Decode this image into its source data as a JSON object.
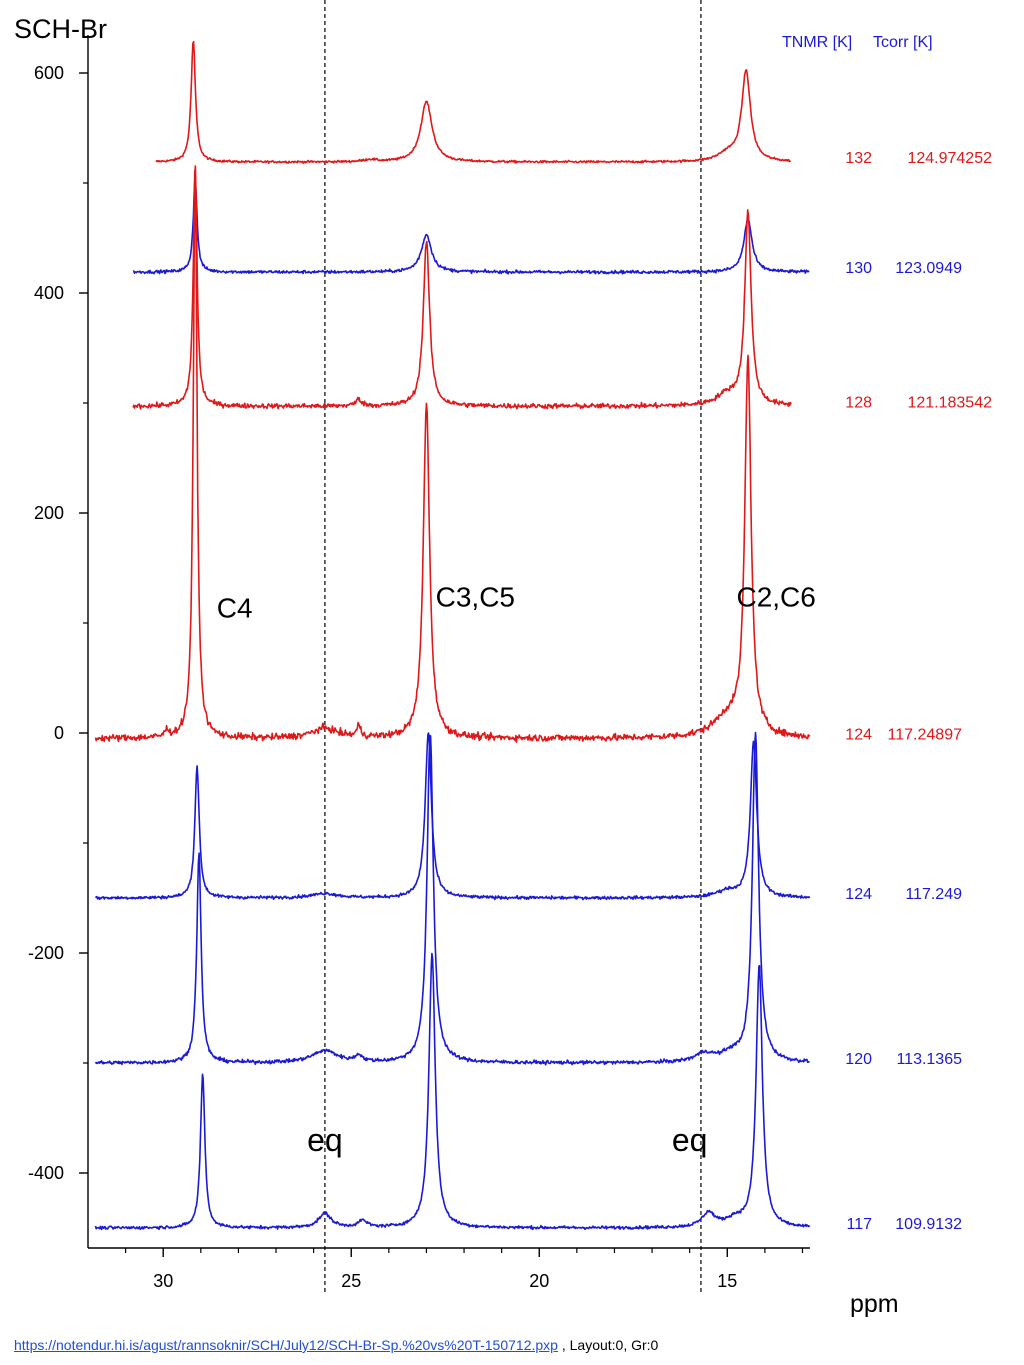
{
  "footer": {
    "link_text": "https://notendur.hi.is/agust/rannsoknir/SCH/July12/SCH-Br-Sp.%20vs%20T-150712.pxp",
    "suffix": " , Layout:0, Gr:0"
  },
  "chart_data": {
    "type": "line",
    "title": "SCH-Br",
    "xlabel": "ppm",
    "ylabel": "",
    "xlim": [
      32,
      12.8
    ],
    "ylim": [
      -470,
      640
    ],
    "x_reversed": true,
    "x_ticks": [
      30,
      25,
      20,
      15
    ],
    "x_tick_labels": [
      "30",
      "25",
      "20",
      "15"
    ],
    "y_ticks": [
      600,
      400,
      200,
      0,
      -200,
      -400
    ],
    "y_tick_labels": [
      "600",
      "400",
      "200",
      "0",
      "-200",
      "-400"
    ],
    "grid": false,
    "reference_lines": [
      25.7,
      15.7
    ],
    "legend_header": {
      "col1": "TNMR [K]",
      "col2": "Tcorr [K]",
      "color": "#1a1ad6"
    },
    "peak_labels": [
      {
        "text": "C4",
        "x": 28.1,
        "y": 105
      },
      {
        "text": "C3,C5",
        "x": 21.7,
        "y": 115
      },
      {
        "text": "C2,C6",
        "x": 13.7,
        "y": 115
      }
    ],
    "eq_labels": [
      {
        "text": "eq",
        "x": 25.7,
        "y": -380
      },
      {
        "text": "eq",
        "x": 16.0,
        "y": -380
      }
    ],
    "series": [
      {
        "tnmr": "132",
        "tcorr": "124.974252",
        "color": "#e01818",
        "baseline": 519,
        "x_start": 30.2,
        "x_end": 13.3,
        "noise": 0.7,
        "peaks": [
          {
            "x": 29.2,
            "h": 110,
            "w": 0.07
          },
          {
            "x": 23.0,
            "h": 55,
            "w": 0.18
          },
          {
            "x": 14.5,
            "h": 82,
            "w": 0.14
          },
          {
            "x": 15.0,
            "h": 7,
            "w": 0.3
          },
          {
            "x": 24.5,
            "h": 2,
            "w": 0.2
          }
        ]
      },
      {
        "tnmr": "130",
        "tcorr": "123.0949",
        "color": "#1a1ad6",
        "baseline": 419,
        "x_start": 30.8,
        "x_end": 12.8,
        "noise": 1.0,
        "peaks": [
          {
            "x": 29.15,
            "h": 85,
            "w": 0.06
          },
          {
            "x": 23.0,
            "h": 34,
            "w": 0.16
          },
          {
            "x": 14.45,
            "h": 48,
            "w": 0.13
          }
        ]
      },
      {
        "tnmr": "128",
        "tcorr": "121.183542",
        "color": "#e01818",
        "baseline": 297,
        "x_start": 30.8,
        "x_end": 13.3,
        "noise": 1.6,
        "peaks": [
          {
            "x": 29.15,
            "h": 220,
            "w": 0.06
          },
          {
            "x": 23.0,
            "h": 150,
            "w": 0.1
          },
          {
            "x": 14.45,
            "h": 175,
            "w": 0.1
          },
          {
            "x": 15.0,
            "h": 10,
            "w": 0.35
          },
          {
            "x": 24.8,
            "h": 6,
            "w": 0.1
          }
        ]
      },
      {
        "tnmr": "124",
        "tcorr": "117.24897",
        "color": "#e01818",
        "baseline": -5,
        "x_start": 31.8,
        "x_end": 12.8,
        "noise": 2.2,
        "peaks": [
          {
            "x": 29.15,
            "h": 520,
            "w": 0.06
          },
          {
            "x": 23.0,
            "h": 305,
            "w": 0.1
          },
          {
            "x": 14.45,
            "h": 340,
            "w": 0.1
          },
          {
            "x": 15.0,
            "h": 18,
            "w": 0.45
          },
          {
            "x": 25.7,
            "h": 9,
            "w": 0.4
          },
          {
            "x": 24.8,
            "h": 10,
            "w": 0.06
          },
          {
            "x": 29.9,
            "h": 6,
            "w": 0.06
          }
        ]
      },
      {
        "tnmr": "124",
        "tcorr": "117.249",
        "color": "#1a1ad6",
        "baseline": -150,
        "x_start": 31.8,
        "x_end": 12.8,
        "noise": 1.0,
        "peaks": [
          {
            "x": 29.1,
            "h": 120,
            "w": 0.07
          },
          {
            "x": 22.95,
            "h": 150,
            "w": 0.1
          },
          {
            "x": 14.3,
            "h": 142,
            "w": 0.1
          },
          {
            "x": 15.0,
            "h": 6,
            "w": 0.35
          },
          {
            "x": 25.7,
            "h": 4,
            "w": 0.4
          }
        ]
      },
      {
        "tnmr": "120",
        "tcorr": "113.1365",
        "color": "#1a1ad6",
        "baseline": -300,
        "x_start": 31.8,
        "x_end": 12.8,
        "noise": 1.2,
        "peaks": [
          {
            "x": 29.05,
            "h": 190,
            "w": 0.07
          },
          {
            "x": 22.9,
            "h": 300,
            "w": 0.1
          },
          {
            "x": 14.25,
            "h": 298,
            "w": 0.1
          },
          {
            "x": 25.7,
            "h": 11,
            "w": 0.4
          },
          {
            "x": 24.8,
            "h": 6,
            "w": 0.1
          },
          {
            "x": 15.6,
            "h": 8,
            "w": 0.3
          },
          {
            "x": 14.9,
            "h": 7,
            "w": 0.3
          }
        ]
      },
      {
        "tnmr": "117",
        "tcorr": "109.9132",
        "color": "#1a1ad6",
        "baseline": -450,
        "x_start": 31.8,
        "x_end": 12.8,
        "noise": 1.0,
        "peaks": [
          {
            "x": 28.95,
            "h": 140,
            "w": 0.07
          },
          {
            "x": 22.85,
            "h": 250,
            "w": 0.1
          },
          {
            "x": 14.15,
            "h": 238,
            "w": 0.1
          },
          {
            "x": 25.7,
            "h": 13,
            "w": 0.2
          },
          {
            "x": 24.7,
            "h": 6,
            "w": 0.15
          },
          {
            "x": 15.5,
            "h": 13,
            "w": 0.2
          },
          {
            "x": 14.8,
            "h": 7,
            "w": 0.3
          }
        ]
      }
    ]
  }
}
